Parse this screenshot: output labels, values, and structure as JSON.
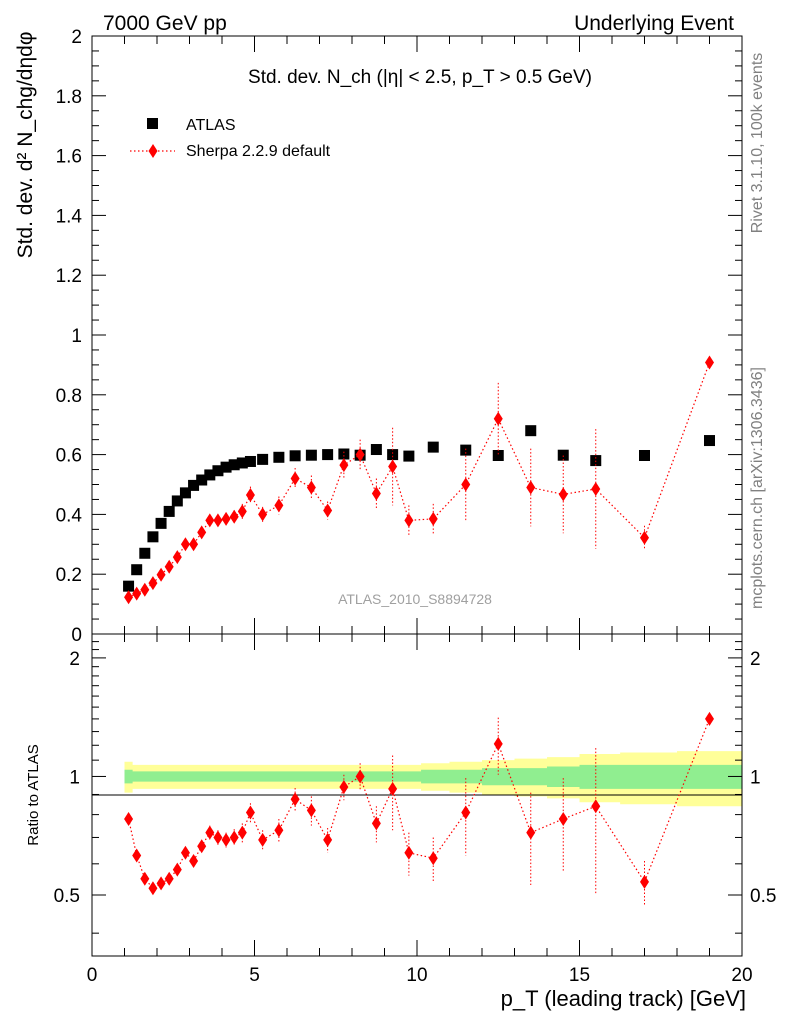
{
  "header": {
    "left": "7000 GeV pp",
    "right": "Underlying Event"
  },
  "side": {
    "rivet": "Rivet 3.1.10,  100k events",
    "mcplots": "mcplots.cern.ch [arXiv:1306.3436]"
  },
  "watermark": "ATLAS_2010_S8894728",
  "chart_data": [
    {
      "type": "scatter",
      "title": "Std. dev. N_ch (|η| < 2.5, p_T > 0.5 GeV)",
      "ylabel": "Std. dev. d² N_chg/dηdφ",
      "xlim": [
        0,
        20
      ],
      "ylim": [
        0,
        2
      ],
      "x_ticks": [
        0,
        5,
        10,
        15,
        20
      ],
      "y_ticks": [
        0,
        0.2,
        0.4,
        0.6,
        0.8,
        1,
        1.2,
        1.4,
        1.6,
        1.8,
        2
      ],
      "y_tick_labels": [
        "0",
        "0.2",
        "0.4",
        "0.6",
        "0.8",
        "1",
        "1.2",
        "1.4",
        "1.6",
        "1.8",
        "2"
      ],
      "legend": {
        "position": "top-left"
      },
      "series": [
        {
          "name": "ATLAS",
          "color": "#000000",
          "marker": "square",
          "x": [
            1.125,
            1.375,
            1.625,
            1.875,
            2.125,
            2.375,
            2.625,
            2.875,
            3.125,
            3.375,
            3.625,
            3.875,
            4.125,
            4.375,
            4.625,
            4.875,
            5.25,
            5.75,
            6.25,
            6.75,
            7.25,
            7.75,
            8.25,
            8.75,
            9.25,
            9.75,
            10.5,
            11.5,
            12.5,
            13.5,
            14.5,
            15.5,
            17.0,
            19.0
          ],
          "y": [
            0.16,
            0.215,
            0.27,
            0.325,
            0.37,
            0.41,
            0.445,
            0.472,
            0.497,
            0.515,
            0.532,
            0.546,
            0.558,
            0.566,
            0.572,
            0.577,
            0.584,
            0.591,
            0.596,
            0.598,
            0.6,
            0.602,
            0.598,
            0.617,
            0.6,
            0.595,
            0.625,
            0.615,
            0.597,
            0.68,
            0.598,
            0.58,
            0.597,
            0.647
          ]
        },
        {
          "name": "Sherpa 2.2.9 default",
          "color": "#ff0000",
          "marker": "diamond",
          "line": "dotted",
          "x": [
            1.125,
            1.375,
            1.625,
            1.875,
            2.125,
            2.375,
            2.625,
            2.875,
            3.125,
            3.375,
            3.625,
            3.875,
            4.125,
            4.375,
            4.625,
            4.875,
            5.25,
            5.75,
            6.25,
            6.75,
            7.25,
            7.75,
            8.25,
            8.75,
            9.25,
            9.75,
            10.5,
            11.5,
            12.5,
            13.5,
            14.5,
            15.5,
            17.0,
            19.0
          ],
          "y": [
            0.123,
            0.135,
            0.148,
            0.17,
            0.198,
            0.225,
            0.257,
            0.3,
            0.3,
            0.34,
            0.38,
            0.38,
            0.385,
            0.392,
            0.41,
            0.465,
            0.4,
            0.43,
            0.52,
            0.49,
            0.413,
            0.565,
            0.6,
            0.47,
            0.56,
            0.38,
            0.385,
            0.5,
            0.72,
            0.49,
            0.467,
            0.485,
            0.322,
            0.908
          ],
          "err": [
            0.005,
            0.005,
            0.006,
            0.007,
            0.008,
            0.009,
            0.01,
            0.012,
            0.012,
            0.015,
            0.018,
            0.018,
            0.02,
            0.022,
            0.025,
            0.028,
            0.025,
            0.03,
            0.035,
            0.04,
            0.03,
            0.045,
            0.05,
            0.05,
            0.13,
            0.05,
            0.05,
            0.12,
            0.12,
            0.13,
            0.13,
            0.2,
            0.04,
            0.01
          ]
        }
      ]
    },
    {
      "type": "scatter",
      "title": "",
      "ylabel": "Ratio to ATLAS",
      "xlabel": "p_T (leading track) [GeV]",
      "xlim": [
        0,
        20
      ],
      "ylim": [
        0.35,
        2.3
      ],
      "x_ticks": [
        0,
        5,
        10,
        15,
        20
      ],
      "y_ticks": [
        0.5,
        1,
        2
      ],
      "y_tick_labels": [
        "0.5",
        "1",
        "2"
      ],
      "bands": {
        "green_halfwidth": [
          0.04,
          0.03,
          0.03,
          0.03,
          0.03,
          0.03,
          0.03,
          0.03,
          0.03,
          0.03,
          0.03,
          0.03,
          0.03,
          0.03,
          0.03,
          0.03,
          0.03,
          0.03,
          0.03,
          0.03,
          0.03,
          0.03,
          0.03,
          0.03,
          0.03,
          0.03,
          0.04,
          0.04,
          0.05,
          0.05,
          0.06,
          0.07,
          0.07,
          0.07
        ],
        "yellow_halfwidth": [
          0.09,
          0.07,
          0.07,
          0.07,
          0.07,
          0.07,
          0.07,
          0.07,
          0.07,
          0.07,
          0.07,
          0.07,
          0.07,
          0.07,
          0.07,
          0.07,
          0.07,
          0.07,
          0.07,
          0.07,
          0.07,
          0.07,
          0.07,
          0.07,
          0.07,
          0.07,
          0.08,
          0.09,
          0.1,
          0.11,
          0.12,
          0.14,
          0.15,
          0.16
        ]
      },
      "series": [
        {
          "name": "Sherpa 2.2.9 default",
          "color": "#ff0000",
          "marker": "diamond",
          "line": "dotted",
          "x": [
            1.125,
            1.375,
            1.625,
            1.875,
            2.125,
            2.375,
            2.625,
            2.875,
            3.125,
            3.375,
            3.625,
            3.875,
            4.125,
            4.375,
            4.625,
            4.875,
            5.25,
            5.75,
            6.25,
            6.75,
            7.25,
            7.75,
            8.25,
            8.75,
            9.25,
            9.75,
            10.5,
            11.5,
            12.5,
            13.5,
            14.5,
            15.5,
            17.0,
            19.0
          ],
          "y": [
            0.78,
            0.63,
            0.55,
            0.52,
            0.535,
            0.55,
            0.58,
            0.64,
            0.61,
            0.665,
            0.72,
            0.7,
            0.69,
            0.7,
            0.72,
            0.81,
            0.69,
            0.73,
            0.875,
            0.82,
            0.69,
            0.94,
            1.0,
            0.76,
            0.93,
            0.64,
            0.62,
            0.81,
            1.21,
            0.72,
            0.78,
            0.84,
            0.54,
            1.4
          ],
          "err": [
            0.01,
            0.01,
            0.01,
            0.01,
            0.01,
            0.015,
            0.015,
            0.02,
            0.02,
            0.025,
            0.03,
            0.03,
            0.03,
            0.035,
            0.04,
            0.045,
            0.04,
            0.05,
            0.06,
            0.07,
            0.05,
            0.07,
            0.08,
            0.08,
            0.2,
            0.08,
            0.08,
            0.18,
            0.2,
            0.19,
            0.21,
            0.34,
            0.07,
            0.01
          ]
        }
      ]
    }
  ]
}
